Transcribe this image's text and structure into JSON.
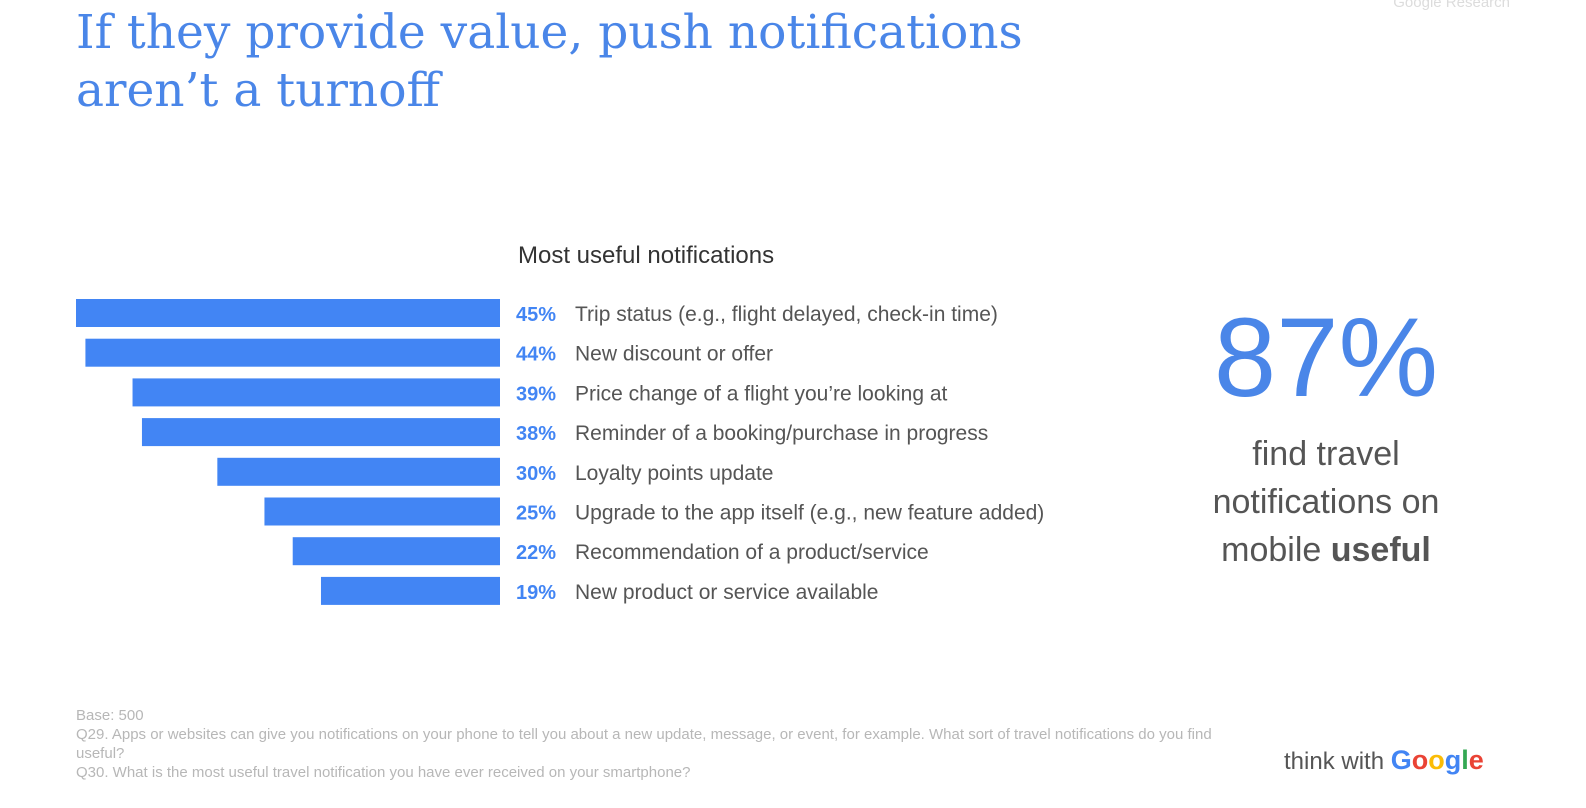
{
  "header": {
    "title_line1": "If they provide value, push notifications",
    "title_line2": "aren’t a turnoff",
    "source": "Google Research"
  },
  "chart_data": {
    "type": "bar",
    "title": "Most useful notifications",
    "orientation": "horizontal",
    "categories": [
      "Trip status (e.g., flight delayed, check-in time)",
      "New discount or offer",
      "Price change of a flight you’re looking at",
      "Reminder of a booking/purchase in progress",
      "Loyalty points update",
      "Upgrade to the app itself (e.g., new feature added)",
      "Recommendation of a product/service",
      "New product or service available"
    ],
    "values": [
      45,
      44,
      39,
      38,
      30,
      25,
      22,
      19
    ],
    "value_labels": [
      "45%",
      "44%",
      "39%",
      "38%",
      "30%",
      "25%",
      "22%",
      "19%"
    ],
    "xlim": [
      0,
      45
    ],
    "grid": false,
    "colors": {
      "bar": "#4285f4",
      "value_label": "#4285f4",
      "category_label": "#555555"
    }
  },
  "stat": {
    "value": "87%",
    "line1": "find travel",
    "line2": "notifications on",
    "line3_prefix": "mobile ",
    "line3_bold": "useful"
  },
  "footnote": {
    "base": "Base: 500",
    "q29": "Q29. Apps or websites can give you notifications on your phone to tell you about a new update, message, or event, for example. What sort of travel notifications do you find useful?",
    "q30": "Q30. What is the most useful travel notification you have ever received on your smartphone?"
  },
  "brand": {
    "think_with": "think with ",
    "google": "Google",
    "google_colors": [
      "#4285f4",
      "#ea4335",
      "#fbbc05",
      "#4285f4",
      "#34a853",
      "#ea4335"
    ]
  }
}
